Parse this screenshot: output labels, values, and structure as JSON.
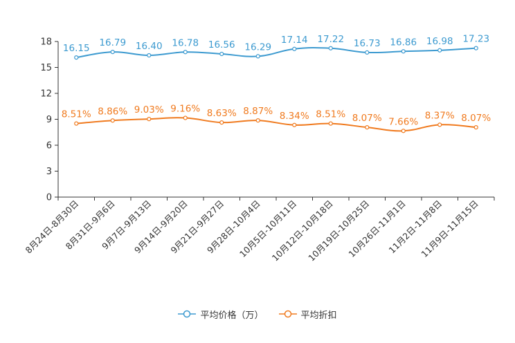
{
  "chart_data": {
    "type": "line",
    "title": "",
    "xlabel": "",
    "ylabel": "",
    "ylim": [
      0,
      18
    ],
    "yticks": [
      0,
      3,
      6,
      9,
      12,
      15,
      18
    ],
    "categories": [
      "8月24日-8月30日",
      "8月31日-9月6日",
      "9月7日-9月13日",
      "9月14日-9月20日",
      "9月21日-9月27日",
      "9月28日-10月4日",
      "10月5日-10月11日",
      "10月12日-10月18日",
      "10月19日-10月25日",
      "10月26日-11月1日",
      "11月2日-11月8日",
      "11月9日-11月15日"
    ],
    "series": [
      {
        "name": "平均价格（万）",
        "color": "#3c9ad0",
        "values": [
          16.15,
          16.79,
          16.4,
          16.78,
          16.56,
          16.29,
          17.14,
          17.22,
          16.73,
          16.86,
          16.98,
          17.23
        ],
        "labels": [
          "16.15",
          "16.79",
          "16.40",
          "16.78",
          "16.56",
          "16.29",
          "17.14",
          "17.22",
          "16.73",
          "16.86",
          "16.98",
          "17.23"
        ]
      },
      {
        "name": "平均折扣",
        "color": "#f07a1e",
        "values": [
          8.51,
          8.86,
          9.03,
          9.16,
          8.63,
          8.87,
          8.34,
          8.51,
          8.07,
          7.66,
          8.37,
          8.07
        ],
        "labels": [
          "8.51%",
          "8.86%",
          "9.03%",
          "9.16%",
          "8.63%",
          "8.87%",
          "8.34%",
          "8.51%",
          "8.07%",
          "7.66%",
          "8.37%",
          "8.07%"
        ]
      }
    ],
    "legend": "bottom-center",
    "grid": false
  }
}
